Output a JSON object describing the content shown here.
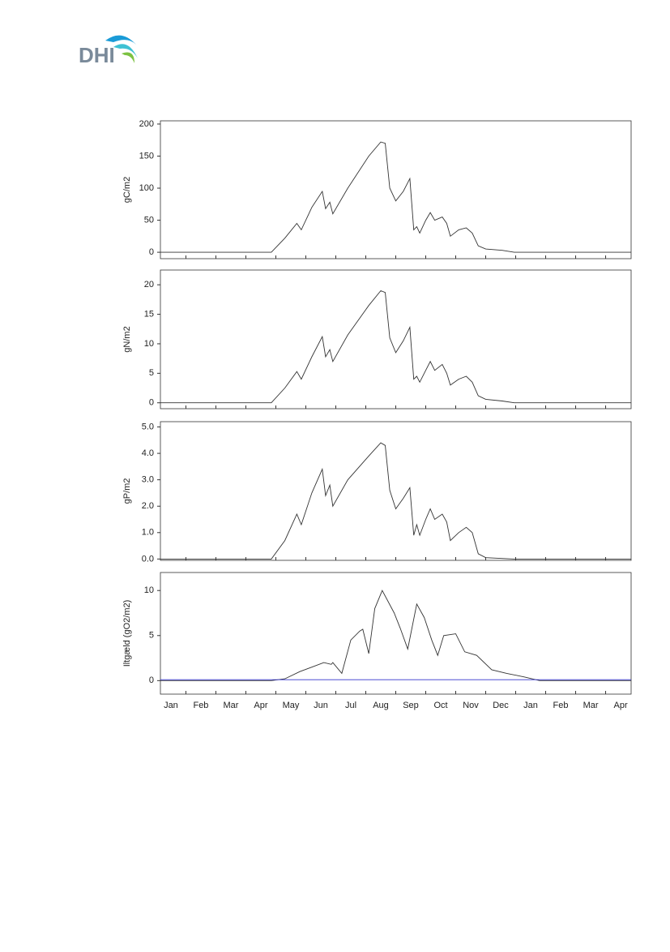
{
  "logo": "DHI",
  "chart_data": [
    {
      "type": "line",
      "ylabel": "gC/m2",
      "xlim": [
        0.15,
        15.85
      ],
      "ylim": [
        -10,
        205
      ],
      "yticks": [
        0,
        50,
        100,
        150,
        200
      ],
      "x": [
        0.15,
        3.85,
        4.3,
        4.7,
        4.85,
        5.2,
        5.55,
        5.66,
        5.8,
        5.9,
        6.4,
        7.1,
        7.5,
        7.65,
        7.8,
        8.0,
        8.25,
        8.47,
        8.6,
        8.7,
        8.8,
        9.0,
        9.15,
        9.3,
        9.55,
        9.7,
        9.82,
        10.1,
        10.35,
        10.55,
        10.75,
        11.0,
        11.55,
        11.95,
        15.85
      ],
      "series": [
        {
          "color": "#333333",
          "values": [
            0,
            0,
            22,
            45,
            35,
            70,
            95,
            68,
            78,
            60,
            100,
            150,
            172,
            170,
            100,
            80,
            95,
            115,
            35,
            40,
            30,
            50,
            62,
            50,
            55,
            45,
            25,
            35,
            38,
            30,
            10,
            5,
            3,
            0,
            0
          ]
        }
      ]
    },
    {
      "type": "line",
      "ylabel": "gN/m2",
      "xlim": [
        0.15,
        15.85
      ],
      "ylim": [
        -1,
        22.5
      ],
      "yticks": [
        0,
        5,
        10,
        15,
        20
      ],
      "x": [
        0.15,
        3.85,
        4.3,
        4.7,
        4.85,
        5.2,
        5.55,
        5.66,
        5.8,
        5.9,
        6.4,
        7.1,
        7.5,
        7.65,
        7.8,
        8.0,
        8.25,
        8.47,
        8.6,
        8.7,
        8.8,
        9.0,
        9.15,
        9.3,
        9.55,
        9.7,
        9.82,
        10.1,
        10.35,
        10.55,
        10.75,
        11.0,
        11.55,
        11.95,
        15.85
      ],
      "series": [
        {
          "color": "#333333",
          "values": [
            0,
            0,
            2.5,
            5.3,
            4,
            7.8,
            11.2,
            7.8,
            9,
            7,
            11.5,
            16.5,
            19,
            18.7,
            11,
            8.5,
            10.5,
            12.8,
            4,
            4.5,
            3.5,
            5.5,
            7,
            5.5,
            6.5,
            5,
            3,
            4,
            4.5,
            3.5,
            1.2,
            0.6,
            0.3,
            0,
            0
          ]
        }
      ]
    },
    {
      "type": "line",
      "ylabel": "gP/m2",
      "xlim": [
        0.15,
        15.85
      ],
      "ylim": [
        -0.05,
        5.2
      ],
      "yticks": [
        {
          "value": 0,
          "label": "0.0"
        },
        {
          "value": 1,
          "label": "1.0"
        },
        {
          "value": 2,
          "label": "2.0"
        },
        {
          "value": 3,
          "label": "3.0"
        },
        {
          "value": 4,
          "label": "4.0"
        },
        {
          "value": 5,
          "label": "5.0"
        }
      ],
      "x": [
        0.15,
        3.85,
        4.3,
        4.7,
        4.85,
        5.2,
        5.55,
        5.66,
        5.8,
        5.9,
        6.4,
        7.1,
        7.5,
        7.65,
        7.8,
        8.0,
        8.25,
        8.47,
        8.6,
        8.7,
        8.8,
        9.0,
        9.15,
        9.3,
        9.55,
        9.7,
        9.82,
        10.1,
        10.35,
        10.55,
        10.75,
        11.0,
        11.55,
        11.95,
        15.85
      ],
      "series": [
        {
          "color": "#333333",
          "values": [
            0,
            0,
            0.7,
            1.7,
            1.3,
            2.5,
            3.4,
            2.4,
            2.8,
            2.0,
            3.0,
            3.9,
            4.4,
            4.3,
            2.6,
            1.9,
            2.3,
            2.7,
            0.9,
            1.3,
            0.9,
            1.5,
            1.9,
            1.5,
            1.7,
            1.4,
            0.7,
            1.0,
            1.2,
            1.0,
            0.2,
            0.05,
            0.02,
            0,
            0
          ]
        }
      ]
    },
    {
      "type": "line",
      "ylabel": "Iltgæld (gO2/m2)",
      "xlim": [
        0.15,
        15.85
      ],
      "ylim": [
        -1.5,
        12
      ],
      "yticks": [
        0,
        5,
        10
      ],
      "categories": [
        "Jan",
        "Feb",
        "Mar",
        "Apr",
        "May",
        "Jun",
        "Jul",
        "Aug",
        "Sep",
        "Oct",
        "Nov",
        "Dec",
        "Jan",
        "Feb",
        "Mar",
        "Apr"
      ],
      "x": [
        0.15,
        3.85,
        4.3,
        4.8,
        5.2,
        5.6,
        5.85,
        5.9,
        6.2,
        6.5,
        6.8,
        6.9,
        7.1,
        7.3,
        7.55,
        7.95,
        8.15,
        8.4,
        8.7,
        8.95,
        9.2,
        9.4,
        9.6,
        10.0,
        10.3,
        10.7,
        11.2,
        11.7,
        12.3,
        12.8,
        15.85
      ],
      "series": [
        {
          "color": "#333333",
          "values": [
            0,
            0,
            0.2,
            1,
            1.5,
            2,
            1.8,
            2,
            0.8,
            4.5,
            5.5,
            5.7,
            3,
            8,
            10,
            7.5,
            5.8,
            3.5,
            8.5,
            7,
            4.5,
            2.8,
            5,
            5.2,
            3.2,
            2.8,
            1.2,
            0.8,
            0.4,
            0,
            0
          ]
        },
        {
          "color": "#3333cc",
          "values": [
            0.1,
            0.1,
            0.1,
            0.1,
            0.1,
            0.1,
            0.1,
            0.1,
            0.1,
            0.1,
            0.1,
            0.1,
            0.1,
            0.1,
            0.1,
            0.1,
            0.1,
            0.1,
            0.1,
            0.1,
            0.1,
            0.1,
            0.1,
            0.1,
            0.1,
            0.1,
            0.1,
            0.1,
            0.1,
            0.1,
            0.1
          ]
        }
      ]
    }
  ]
}
